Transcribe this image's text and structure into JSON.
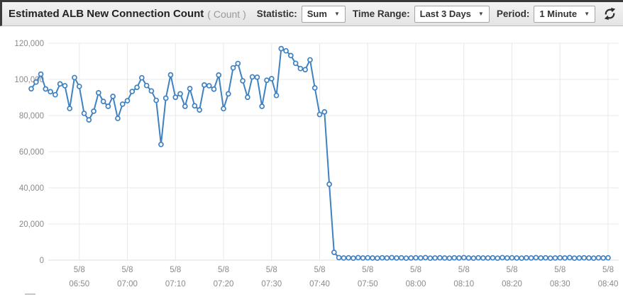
{
  "header": {
    "title": "Estimated ALB New Connection Count",
    "unit": "( Count )",
    "statistic": {
      "label": "Statistic:",
      "value": "Sum"
    },
    "time_range": {
      "label": "Time Range:",
      "value": "Last 3 Days"
    },
    "period": {
      "label": "Period:",
      "value": "1 Minute"
    },
    "refresh_icon": "refresh-icon",
    "dropdown_arrow": "▼"
  },
  "colors": {
    "line": "#3f81c1",
    "marker_fill": "#ffffff",
    "grid": "#e8e8e8",
    "axis_line": "#dcdcdc",
    "axis_text": "#8a8a8a",
    "header_bg": "#ececec",
    "dark_border": "#3b3b3b"
  },
  "chart_data": {
    "type": "line",
    "title": "Estimated ALB New Connection Count",
    "ylabel": "Count",
    "statistic": "Sum",
    "period": "1 Minute",
    "time_range": "Last 3 Days",
    "grid": true,
    "legend_position": "none",
    "marker": "circle",
    "ylim": [
      0,
      120000
    ],
    "y_ticks": [
      0,
      20000,
      40000,
      60000,
      80000,
      100000,
      120000
    ],
    "start_time": "5/8 06:40",
    "period_minutes": 1,
    "x_ticks": [
      {
        "date": "5/8",
        "time": "06:50"
      },
      {
        "date": "5/8",
        "time": "07:00"
      },
      {
        "date": "5/8",
        "time": "07:10"
      },
      {
        "date": "5/8",
        "time": "07:20"
      },
      {
        "date": "5/8",
        "time": "07:30"
      },
      {
        "date": "5/8",
        "time": "07:40"
      },
      {
        "date": "5/8",
        "time": "07:50"
      },
      {
        "date": "5/8",
        "time": "08:00"
      },
      {
        "date": "5/8",
        "time": "08:10"
      },
      {
        "date": "5/8",
        "time": "08:20"
      },
      {
        "date": "5/8",
        "time": "08:30"
      },
      {
        "date": "5/8",
        "time": "08:40"
      }
    ],
    "values": [
      94800,
      98500,
      102900,
      94700,
      93200,
      91500,
      97500,
      96500,
      83900,
      101000,
      96100,
      81200,
      77600,
      82400,
      92600,
      87800,
      85100,
      90600,
      78400,
      86300,
      88200,
      93300,
      95600,
      100900,
      96600,
      93600,
      88400,
      64000,
      89600,
      102500,
      90100,
      92000,
      85100,
      94900,
      85400,
      83100,
      96900,
      96500,
      94600,
      102400,
      83800,
      92000,
      106400,
      108800,
      99200,
      90100,
      101400,
      101200,
      85100,
      99500,
      100400,
      91100,
      117000,
      115800,
      113200,
      108900,
      106000,
      105400,
      110800,
      95300,
      80600,
      82000,
      42000,
      4300,
      1400,
      1200,
      1300,
      1100,
      1400,
      1200,
      1300,
      1200,
      1100,
      1300,
      1200,
      1400,
      1200,
      1300,
      1100,
      1200,
      1300,
      1200,
      1400,
      1100,
      1200,
      1300,
      1200,
      1100,
      1300,
      1200,
      1400,
      1200,
      1100,
      1300,
      1200,
      1200,
      1300,
      1100,
      1400,
      1200,
      1300,
      1200,
      1100,
      1300,
      1200,
      1400,
      1200,
      1300,
      1100,
      1200,
      1300,
      1200,
      1400,
      1100,
      1200,
      1300,
      1200,
      1100,
      1300,
      1200,
      1300
    ]
  }
}
